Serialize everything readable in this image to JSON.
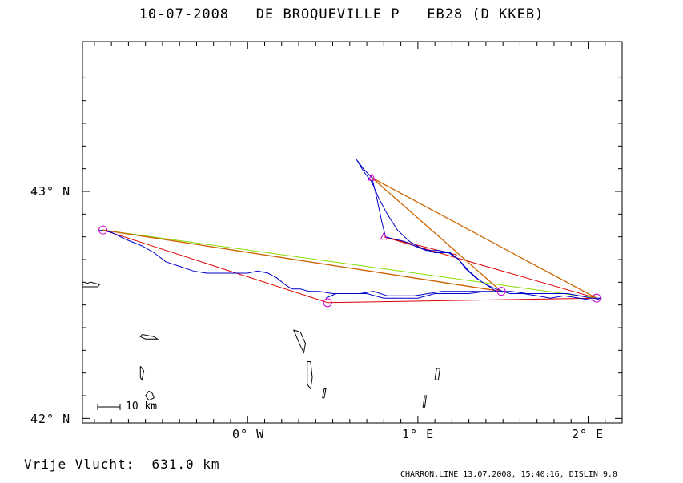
{
  "header": {
    "date": "10-07-2008",
    "pilot": "DE BROQUEVILLE P",
    "glider": "EB28 (D KKEB)"
  },
  "axes": {
    "y_ticks": [
      {
        "value": 43,
        "label": "43° N"
      },
      {
        "value": 42,
        "label": "42° N"
      }
    ],
    "x_ticks": [
      {
        "value": 0,
        "label": "0° W"
      },
      {
        "value": 1,
        "label": "1° E"
      },
      {
        "value": 2,
        "label": "2° E"
      }
    ],
    "lon_range": [
      -0.97,
      2.2
    ],
    "lat_range": [
      41.98,
      43.66
    ]
  },
  "scale_bar": {
    "label": "10 km"
  },
  "summary": {
    "label": "Vrije Vlucht:",
    "distance": "631.0 km"
  },
  "footer": "CHARRON.LINE 13.07.2008, 15:40:16, DISLIN 9.0",
  "colors": {
    "track": "#0000cc",
    "triangle": "#dd0000",
    "free_flight": "#88dd00",
    "route": "#cc6600",
    "turnpoint": "#cc00cc",
    "terrain": "#000000"
  },
  "map_data": {
    "turnpoints": [
      {
        "lon": -0.85,
        "lat": 42.83
      },
      {
        "lon": 0.47,
        "lat": 42.51
      },
      {
        "lon": 1.49,
        "lat": 42.56
      },
      {
        "lon": 2.05,
        "lat": 42.53
      },
      {
        "lon": 0.8,
        "lat": 42.8
      },
      {
        "lon": 0.73,
        "lat": 43.06
      }
    ],
    "triangle_legs": [
      [
        [
          -0.85,
          42.83
        ],
        [
          0.47,
          42.51
        ]
      ],
      [
        [
          0.47,
          42.51
        ],
        [
          2.05,
          42.53
        ]
      ],
      [
        [
          -0.85,
          42.83
        ],
        [
          1.49,
          42.56
        ]
      ],
      [
        [
          0.8,
          42.8
        ],
        [
          2.05,
          42.53
        ]
      ],
      [
        [
          0.8,
          42.8
        ],
        [
          1.23,
          42.72
        ]
      ]
    ],
    "free_flight_leg": [
      [
        -0.85,
        42.83
      ],
      [
        2.05,
        42.53
      ]
    ],
    "route_legs": [
      [
        [
          0.73,
          43.06
        ],
        [
          1.49,
          42.56
        ]
      ],
      [
        [
          0.73,
          43.06
        ],
        [
          2.05,
          42.53
        ]
      ],
      [
        [
          -0.85,
          42.83
        ],
        [
          1.49,
          42.56
        ]
      ]
    ],
    "track": [
      [
        -0.87,
        42.83
      ],
      [
        -0.8,
        42.82
      ],
      [
        -0.72,
        42.79
      ],
      [
        -0.62,
        42.76
      ],
      [
        -0.55,
        42.73
      ],
      [
        -0.48,
        42.69
      ],
      [
        -0.4,
        42.67
      ],
      [
        -0.32,
        42.65
      ],
      [
        -0.24,
        42.64
      ],
      [
        -0.16,
        42.64
      ],
      [
        -0.08,
        42.64
      ],
      [
        0.0,
        42.64
      ],
      [
        0.06,
        42.65
      ],
      [
        0.12,
        42.64
      ],
      [
        0.17,
        42.62
      ],
      [
        0.22,
        42.59
      ],
      [
        0.26,
        42.57
      ],
      [
        0.31,
        42.57
      ],
      [
        0.36,
        42.56
      ],
      [
        0.42,
        42.56
      ],
      [
        0.5,
        42.55
      ],
      [
        0.58,
        42.55
      ],
      [
        0.66,
        42.55
      ],
      [
        0.74,
        42.56
      ],
      [
        0.82,
        42.54
      ],
      [
        0.9,
        42.54
      ],
      [
        0.98,
        42.54
      ],
      [
        1.06,
        42.55
      ],
      [
        1.14,
        42.56
      ],
      [
        1.22,
        42.56
      ],
      [
        1.3,
        42.56
      ],
      [
        1.38,
        42.56
      ],
      [
        1.46,
        42.56
      ],
      [
        1.55,
        42.56
      ],
      [
        1.64,
        42.55
      ],
      [
        1.72,
        42.55
      ],
      [
        1.8,
        42.55
      ],
      [
        1.88,
        42.55
      ],
      [
        1.95,
        42.54
      ],
      [
        2.02,
        42.53
      ],
      [
        2.08,
        42.53
      ],
      [
        2.03,
        42.52
      ],
      [
        1.95,
        42.53
      ],
      [
        1.86,
        42.54
      ],
      [
        1.78,
        42.53
      ],
      [
        1.7,
        42.54
      ],
      [
        1.62,
        42.55
      ],
      [
        1.54,
        42.55
      ],
      [
        1.46,
        42.57
      ],
      [
        1.4,
        42.59
      ],
      [
        1.34,
        42.62
      ],
      [
        1.28,
        42.66
      ],
      [
        1.24,
        42.7
      ],
      [
        1.19,
        42.73
      ],
      [
        1.12,
        42.74
      ],
      [
        1.05,
        42.74
      ],
      [
        0.98,
        42.76
      ],
      [
        0.92,
        42.78
      ],
      [
        0.86,
        42.79
      ],
      [
        0.81,
        42.8
      ],
      [
        0.79,
        42.86
      ],
      [
        0.77,
        42.93
      ],
      [
        0.75,
        43.0
      ],
      [
        0.73,
        43.06
      ],
      [
        0.68,
        43.1
      ],
      [
        0.64,
        43.14
      ],
      [
        0.68,
        43.09
      ],
      [
        0.73,
        43.04
      ],
      [
        0.77,
        42.97
      ],
      [
        0.82,
        42.9
      ],
      [
        0.88,
        42.83
      ],
      [
        0.95,
        42.78
      ],
      [
        1.02,
        42.75
      ],
      [
        1.1,
        42.73
      ],
      [
        1.18,
        42.73
      ],
      [
        1.24,
        42.7
      ],
      [
        1.3,
        42.65
      ],
      [
        1.36,
        42.61
      ],
      [
        1.42,
        42.58
      ],
      [
        1.46,
        42.56
      ],
      [
        1.4,
        42.56
      ],
      [
        1.3,
        42.55
      ],
      [
        1.2,
        42.55
      ],
      [
        1.1,
        42.55
      ],
      [
        1.0,
        42.53
      ],
      [
        0.9,
        42.53
      ],
      [
        0.8,
        42.53
      ],
      [
        0.7,
        42.55
      ],
      [
        0.6,
        42.55
      ],
      [
        0.52,
        42.55
      ],
      [
        0.46,
        42.53
      ]
    ],
    "terrain_outlines": [
      [
        [
          -0.97,
          42.59
        ],
        [
          -0.92,
          42.6
        ],
        [
          -0.87,
          42.59
        ],
        [
          -0.88,
          42.58
        ],
        [
          -0.93,
          42.58
        ],
        [
          -0.97,
          42.58
        ]
      ],
      [
        [
          -0.62,
          42.37
        ],
        [
          -0.55,
          42.36
        ],
        [
          -0.53,
          42.35
        ],
        [
          -0.6,
          42.35
        ],
        [
          -0.63,
          42.36
        ],
        [
          -0.62,
          42.37
        ]
      ],
      [
        [
          -0.63,
          42.23
        ],
        [
          -0.61,
          42.21
        ],
        [
          -0.62,
          42.17
        ],
        [
          -0.63,
          42.18
        ],
        [
          -0.63,
          42.23
        ]
      ],
      [
        [
          -0.58,
          42.12
        ],
        [
          -0.56,
          42.11
        ],
        [
          -0.55,
          42.09
        ],
        [
          -0.58,
          42.08
        ],
        [
          -0.6,
          42.1
        ],
        [
          -0.58,
          42.12
        ]
      ],
      [
        [
          0.27,
          42.39
        ],
        [
          0.31,
          42.38
        ],
        [
          0.34,
          42.33
        ],
        [
          0.33,
          42.29
        ],
        [
          0.31,
          42.32
        ],
        [
          0.27,
          42.39
        ]
      ],
      [
        [
          0.35,
          42.25
        ],
        [
          0.37,
          42.25
        ],
        [
          0.38,
          42.18
        ],
        [
          0.37,
          42.13
        ],
        [
          0.35,
          42.15
        ],
        [
          0.35,
          42.25
        ]
      ],
      [
        [
          0.45,
          42.13
        ],
        [
          0.46,
          42.13
        ],
        [
          0.45,
          42.09
        ],
        [
          0.44,
          42.09
        ],
        [
          0.45,
          42.13
        ]
      ],
      [
        [
          1.11,
          42.22
        ],
        [
          1.13,
          42.22
        ],
        [
          1.12,
          42.17
        ],
        [
          1.1,
          42.17
        ],
        [
          1.11,
          42.22
        ]
      ],
      [
        [
          1.04,
          42.1
        ],
        [
          1.05,
          42.1
        ],
        [
          1.04,
          42.05
        ],
        [
          1.03,
          42.05
        ],
        [
          1.04,
          42.1
        ]
      ]
    ]
  }
}
